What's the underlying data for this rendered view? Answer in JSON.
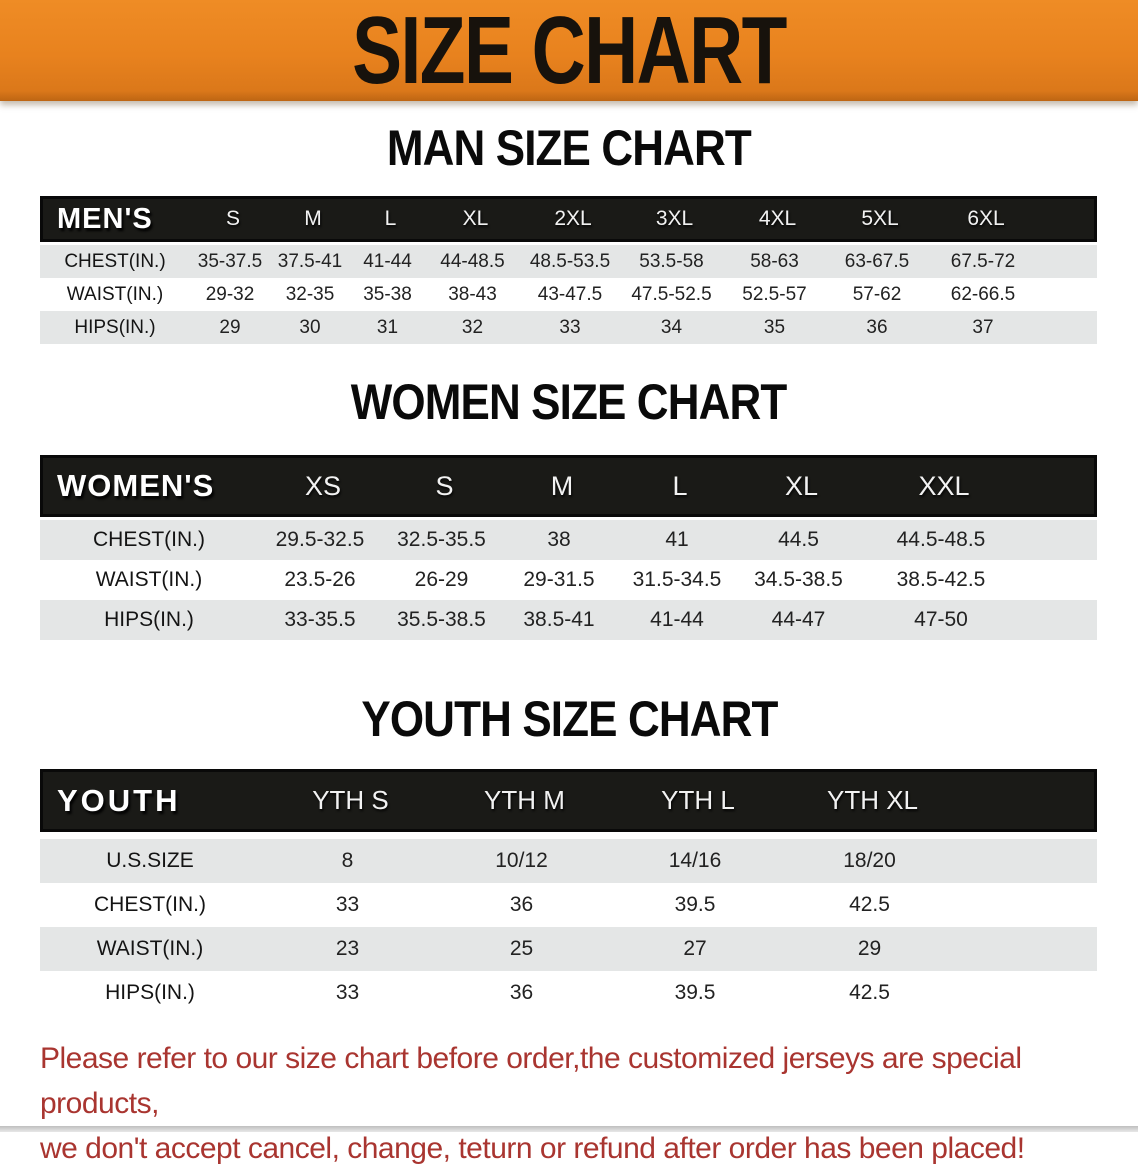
{
  "banner": {
    "title": "SIZE CHART"
  },
  "sections": {
    "men": {
      "heading": "MAN SIZE CHART",
      "header": {
        "label": "MEN'S",
        "sizes": [
          "S",
          "M",
          "L",
          "XL",
          "2XL",
          "3XL",
          "4XL",
          "5XL",
          "6XL"
        ]
      },
      "rows": [
        {
          "label": "CHEST(IN.)",
          "values": [
            "35-37.5",
            "37.5-41",
            "41-44",
            "44-48.5",
            "48.5-53.5",
            "53.5-58",
            "58-63",
            "63-67.5",
            "67.5-72"
          ]
        },
        {
          "label": "WAIST(IN.)",
          "values": [
            "29-32",
            "32-35",
            "35-38",
            "38-43",
            "43-47.5",
            "47.5-52.5",
            "52.5-57",
            "57-62",
            "62-66.5"
          ]
        },
        {
          "label": "HIPS(IN.)",
          "values": [
            "29",
            "30",
            "31",
            "32",
            "33",
            "34",
            "35",
            "36",
            "37"
          ]
        }
      ]
    },
    "women": {
      "heading": "WOMEN SIZE CHART",
      "header": {
        "label": "WOMEN'S",
        "sizes": [
          "XS",
          "S",
          "M",
          "L",
          "XL",
          "XXL"
        ]
      },
      "rows": [
        {
          "label": "CHEST(IN.)",
          "values": [
            "29.5-32.5",
            "32.5-35.5",
            "38",
            "41",
            "44.5",
            "44.5-48.5"
          ]
        },
        {
          "label": "WAIST(IN.)",
          "values": [
            "23.5-26",
            "26-29",
            "29-31.5",
            "31.5-34.5",
            "34.5-38.5",
            "38.5-42.5"
          ]
        },
        {
          "label": "HIPS(IN.)",
          "values": [
            "33-35.5",
            "35.5-38.5",
            "38.5-41",
            "41-44",
            "44-47",
            "47-50"
          ]
        }
      ]
    },
    "youth": {
      "heading": "YOUTH SIZE CHART",
      "header": {
        "label": "YOUTH",
        "sizes": [
          "YTH S",
          "YTH M",
          "YTH L",
          "YTH XL"
        ]
      },
      "rows": [
        {
          "label": "U.S.SIZE",
          "values": [
            "8",
            "10/12",
            "14/16",
            "18/20"
          ]
        },
        {
          "label": "CHEST(IN.)",
          "values": [
            "33",
            "36",
            "39.5",
            "42.5"
          ]
        },
        {
          "label": "WAIST(IN.)",
          "values": [
            "23",
            "25",
            "27",
            "29"
          ]
        },
        {
          "label": "HIPS(IN.)",
          "values": [
            "33",
            "36",
            "39.5",
            "42.5"
          ]
        }
      ]
    }
  },
  "footer": {
    "line1": "Please refer to our size chart before order,the customized jerseys are special products,",
    "line2": "we don't accept cancel, change, teturn or refund after order has been placed!"
  },
  "colors": {
    "banner_orange": "#E8821E",
    "bar_black": "#1A1A17",
    "row_shade": "#E4E6E6",
    "note_red": "#A93530"
  }
}
